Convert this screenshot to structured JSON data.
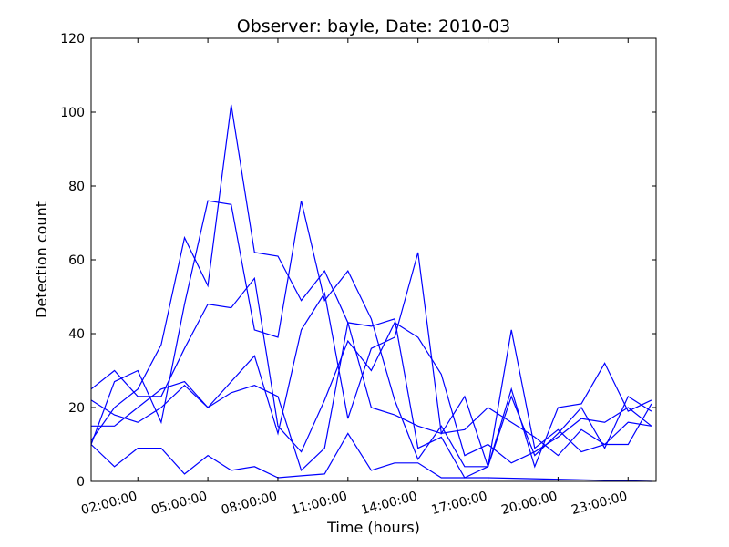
{
  "chart_data": {
    "type": "line",
    "title": "Observer: bayle, Date: 2010-03",
    "xlabel": "Time (hours)",
    "ylabel": "Detection count",
    "xlim": [
      0.0,
      24.2
    ],
    "ylim": [
      0,
      120
    ],
    "x_ticks": [
      {
        "value": 2,
        "label": "02:00:00"
      },
      {
        "value": 5,
        "label": "05:00:00"
      },
      {
        "value": 8,
        "label": "08:00:00"
      },
      {
        "value": 11,
        "label": "11:00:00"
      },
      {
        "value": 14,
        "label": "14:00:00"
      },
      {
        "value": 17,
        "label": "17:00:00"
      },
      {
        "value": 20,
        "label": "20:00:00"
      },
      {
        "value": 23,
        "label": "23:00:00"
      }
    ],
    "y_ticks": [
      0,
      20,
      40,
      60,
      80,
      100,
      120
    ],
    "grid": false,
    "line_color": "#0000ff",
    "series": [
      {
        "x": [
          0,
          1,
          2,
          3,
          4,
          5,
          6,
          7,
          8,
          9,
          10,
          11,
          12,
          13,
          14,
          15,
          16,
          17,
          18,
          19,
          20,
          21,
          22,
          23,
          24
        ],
        "values": [
          25,
          30,
          23,
          23,
          36,
          48,
          47,
          55,
          15,
          8,
          22,
          38,
          30,
          43,
          39,
          29,
          7,
          10,
          5,
          8,
          12,
          17,
          16,
          20,
          15
        ]
      },
      {
        "x": [
          0,
          1,
          2,
          3,
          4,
          5,
          6,
          7,
          8,
          9,
          10,
          11,
          12,
          13,
          14,
          15,
          16,
          17,
          18,
          19,
          20,
          21,
          22,
          23,
          24
        ],
        "values": [
          10,
          27,
          30,
          16,
          48,
          76,
          75,
          41,
          39,
          76,
          49,
          57,
          44,
          22,
          6,
          15,
          4,
          4,
          41,
          9,
          14,
          8,
          10,
          16,
          15
        ]
      },
      {
        "x": [
          0,
          1,
          2,
          3,
          4,
          5,
          6,
          7,
          8,
          9,
          10,
          11,
          12,
          13,
          14,
          15,
          16,
          17,
          18,
          19,
          20,
          21,
          22,
          23,
          24
        ],
        "values": [
          11,
          20,
          25,
          37,
          66,
          53,
          102,
          62,
          61,
          49,
          57,
          43,
          42,
          44,
          9,
          12,
          1,
          4,
          25,
          4,
          20,
          21,
          32,
          19,
          22
        ]
      },
      {
        "x": [
          0,
          1,
          2,
          3,
          4,
          5,
          6,
          7,
          8,
          9,
          10,
          11,
          12,
          13,
          14,
          15,
          16,
          17,
          18,
          19,
          20,
          21,
          22,
          23,
          24
        ],
        "values": [
          15,
          15,
          20,
          25,
          27,
          20,
          27,
          34,
          13,
          41,
          51,
          17,
          36,
          39,
          62,
          13,
          23,
          4,
          23,
          7,
          13,
          20,
          9,
          23,
          19
        ]
      },
      {
        "x": [
          0,
          1,
          2,
          3,
          4,
          5,
          6,
          7,
          8,
          9,
          10,
          11,
          12,
          13,
          14,
          15,
          16,
          17,
          18,
          19,
          20,
          21,
          22,
          23,
          24
        ],
        "values": [
          22,
          18,
          16,
          20,
          26,
          20,
          24,
          26,
          23,
          3,
          9,
          43,
          20,
          18,
          15,
          13,
          14,
          20,
          16,
          12,
          7,
          14,
          10,
          10,
          21
        ]
      },
      {
        "x": [
          0,
          1,
          2,
          3,
          4,
          5,
          6,
          7,
          8,
          9,
          10,
          11,
          12,
          13,
          14,
          15,
          16,
          17,
          24
        ],
        "values": [
          10,
          4,
          9,
          9,
          2,
          7,
          3,
          4,
          1,
          1.5,
          2,
          13,
          3,
          5,
          5,
          1,
          1,
          1,
          0
        ]
      }
    ]
  }
}
